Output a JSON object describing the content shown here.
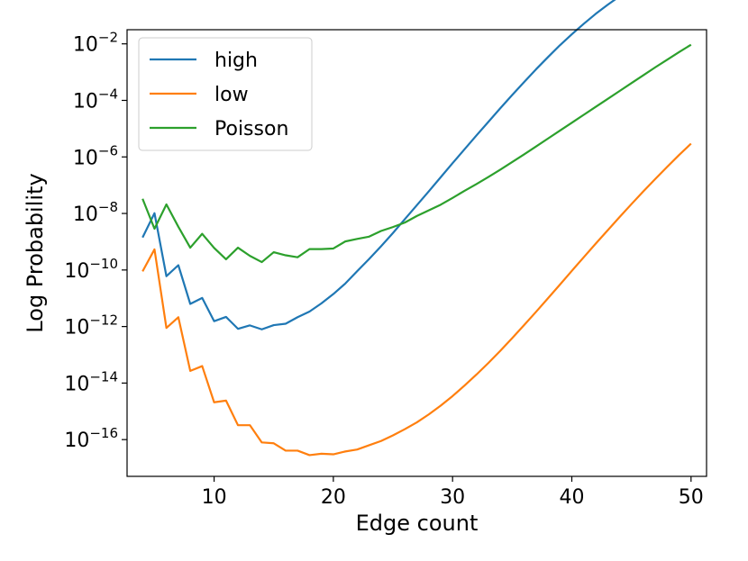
{
  "chart_data": {
    "type": "line",
    "title": "",
    "xlabel": "Edge count",
    "ylabel": "Log Probability",
    "xlim": [
      2.7,
      51.3
    ],
    "ylim": [
      -17.3,
      -1.5
    ],
    "y_scale": "log10",
    "grid": false,
    "legend_position": "top-left",
    "x_ticks": [
      10,
      20,
      30,
      40,
      50
    ],
    "y_ticks": [
      {
        "exp": -2,
        "base": "10",
        "sup": "−2"
      },
      {
        "exp": -4,
        "base": "10",
        "sup": "−4"
      },
      {
        "exp": -6,
        "base": "10",
        "sup": "−6"
      },
      {
        "exp": -8,
        "base": "10",
        "sup": "−8"
      },
      {
        "exp": -10,
        "base": "10",
        "sup": "−10"
      },
      {
        "exp": -12,
        "base": "10",
        "sup": "−12"
      },
      {
        "exp": -14,
        "base": "10",
        "sup": "−14"
      },
      {
        "exp": -16,
        "base": "10",
        "sup": "−16"
      }
    ],
    "x": [
      4,
      5,
      6,
      7,
      8,
      9,
      10,
      11,
      12,
      13,
      14,
      15,
      16,
      17,
      18,
      19,
      20,
      21,
      22,
      23,
      24,
      25,
      26,
      27,
      28,
      29,
      30,
      31,
      32,
      33,
      34,
      35,
      36,
      37,
      38,
      39,
      40,
      41,
      42,
      43,
      44,
      45,
      46,
      47,
      48,
      49,
      50
    ],
    "series": [
      {
        "name": "high",
        "color": "#1f77b4",
        "log10_values": [
          -8.85,
          -7.99,
          -10.22,
          -9.83,
          -11.2,
          -10.99,
          -11.81,
          -11.66,
          -12.08,
          -11.96,
          -12.1,
          -11.95,
          -11.9,
          -11.67,
          -11.47,
          -11.18,
          -10.85,
          -10.48,
          -10.04,
          -9.61,
          -9.16,
          -8.69,
          -8.2,
          -7.71,
          -7.22,
          -6.72,
          -6.22,
          -5.73,
          -5.24,
          -4.76,
          -4.28,
          -3.81,
          -3.35,
          -2.9,
          -2.47,
          -2.05,
          -1.66,
          -1.29,
          -0.94,
          -0.62,
          -0.32,
          -0.05,
          0.2,
          0.43,
          0.64,
          0.82,
          0.98
        ]
      },
      {
        "name": "low",
        "color": "#ff7f0e",
        "log10_values": [
          -10.05,
          -9.27,
          -12.05,
          -11.67,
          -13.57,
          -13.4,
          -14.68,
          -14.62,
          -15.49,
          -15.49,
          -16.1,
          -16.13,
          -16.39,
          -16.39,
          -16.55,
          -16.5,
          -16.52,
          -16.42,
          -16.35,
          -16.2,
          -16.05,
          -15.85,
          -15.63,
          -15.39,
          -15.11,
          -14.8,
          -14.46,
          -14.09,
          -13.7,
          -13.29,
          -12.86,
          -12.41,
          -11.95,
          -11.48,
          -11.0,
          -10.52,
          -10.03,
          -9.55,
          -9.07,
          -8.6,
          -8.13,
          -7.67,
          -7.22,
          -6.78,
          -6.35,
          -5.93,
          -5.53
        ]
      },
      {
        "name": "Poisson",
        "color": "#2ca02c",
        "log10_values": [
          -7.48,
          -8.54,
          -7.68,
          -8.47,
          -9.21,
          -8.72,
          -9.22,
          -9.62,
          -9.21,
          -9.5,
          -9.72,
          -9.37,
          -9.48,
          -9.55,
          -9.26,
          -9.26,
          -9.24,
          -8.99,
          -8.9,
          -8.82,
          -8.62,
          -8.48,
          -8.32,
          -8.09,
          -7.89,
          -7.69,
          -7.45,
          -7.2,
          -6.96,
          -6.71,
          -6.45,
          -6.18,
          -5.91,
          -5.63,
          -5.35,
          -5.07,
          -4.79,
          -4.51,
          -4.23,
          -3.95,
          -3.67,
          -3.39,
          -3.11,
          -2.83,
          -2.56,
          -2.29,
          -2.03
        ]
      }
    ]
  }
}
